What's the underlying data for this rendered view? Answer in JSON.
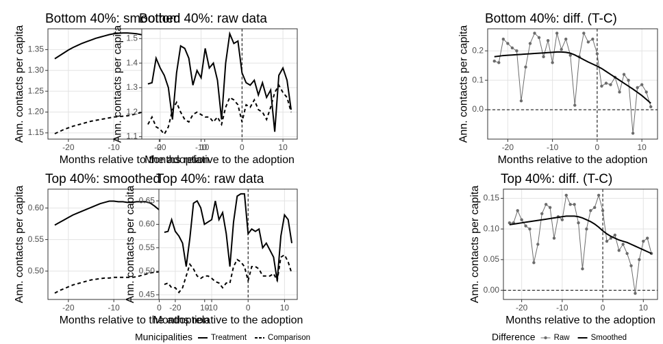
{
  "chart_data": [
    {
      "type": "line",
      "title": "Bottom 40%: smoothed",
      "x_label": "Months relative to the adoption",
      "y_label": "Ann. contacts per capita",
      "x": [
        -23,
        -22,
        -21,
        -20,
        -19,
        -18,
        -17,
        -16,
        -15,
        -14,
        -13,
        -12,
        -11,
        -10,
        -9,
        -8,
        -7,
        -6,
        -5,
        -4,
        -3,
        -2,
        -1,
        0,
        1,
        2,
        3,
        4,
        5,
        6,
        7,
        8,
        9,
        10,
        11,
        12
      ],
      "series": [
        {
          "color": "#000000",
          "dash": "solid",
          "marker": false,
          "values": [
            1.328,
            1.335,
            1.342,
            1.349,
            1.355,
            1.36,
            1.365,
            1.369,
            1.373,
            1.377,
            1.38,
            1.383,
            1.386,
            1.388,
            1.389,
            1.39,
            1.39,
            1.389,
            1.388,
            1.386,
            1.384,
            1.381,
            1.377,
            1.37,
            1.36,
            1.35,
            1.341,
            1.333,
            1.325,
            1.317,
            1.309,
            1.301,
            1.294,
            1.287,
            1.281,
            1.274
          ]
        },
        {
          "color": "#000000",
          "dash": "dashed",
          "marker": false,
          "values": [
            1.148,
            1.153,
            1.158,
            1.162,
            1.166,
            1.169,
            1.172,
            1.175,
            1.178,
            1.18,
            1.182,
            1.184,
            1.186,
            1.188,
            1.189,
            1.19,
            1.191,
            1.193,
            1.196,
            1.199,
            1.203,
            1.207,
            1.211,
            1.215,
            1.219,
            1.222,
            1.225,
            1.228,
            1.231,
            1.234,
            1.237,
            1.24,
            1.243,
            1.245,
            1.248,
            1.25
          ]
        }
      ],
      "xlim": [
        -24.5,
        13.5
      ],
      "xticks": [
        -20,
        -10,
        0,
        10
      ],
      "ylim": [
        1.135,
        1.4
      ],
      "yticks": [
        {
          "value": 1.15,
          "label": "1.15"
        },
        {
          "value": 1.2,
          "label": "1.20"
        },
        {
          "value": 1.25,
          "label": "1.25"
        },
        {
          "value": 1.3,
          "label": "1.30"
        },
        {
          "value": 1.35,
          "label": "1.35"
        }
      ],
      "grid": true,
      "vline": 0
    },
    {
      "type": "line",
      "title": "Bottom 40%: raw data",
      "x_label": "Months relative to the adoption",
      "y_label": "Ann. contacts per capita",
      "x": [
        -23,
        -22,
        -21,
        -20,
        -19,
        -18,
        -17,
        -16,
        -15,
        -14,
        -13,
        -12,
        -11,
        -10,
        -9,
        -8,
        -7,
        -6,
        -5,
        -4,
        -3,
        -2,
        -1,
        0,
        1,
        2,
        3,
        4,
        5,
        6,
        7,
        8,
        9,
        10,
        11,
        12
      ],
      "series": [
        {
          "color": "#000000",
          "dash": "solid",
          "marker": false,
          "values": [
            1.315,
            1.32,
            1.42,
            1.38,
            1.35,
            1.3,
            1.17,
            1.36,
            1.47,
            1.46,
            1.42,
            1.31,
            1.37,
            1.34,
            1.46,
            1.38,
            1.4,
            1.33,
            1.17,
            1.4,
            1.52,
            1.48,
            1.49,
            1.36,
            1.32,
            1.31,
            1.33,
            1.27,
            1.32,
            1.26,
            1.29,
            1.12,
            1.35,
            1.38,
            1.33,
            1.21
          ]
        },
        {
          "color": "#000000",
          "dash": "dashed",
          "marker": false,
          "values": [
            1.15,
            1.18,
            1.14,
            1.13,
            1.11,
            1.14,
            1.21,
            1.24,
            1.2,
            1.17,
            1.16,
            1.19,
            1.2,
            1.19,
            1.18,
            1.18,
            1.16,
            1.18,
            1.15,
            1.22,
            1.26,
            1.25,
            1.23,
            1.16,
            1.23,
            1.22,
            1.25,
            1.21,
            1.2,
            1.17,
            1.22,
            1.28,
            1.31,
            1.28,
            1.26,
            1.2
          ]
        }
      ],
      "xlim": [
        -24.5,
        13.5
      ],
      "xticks": [
        -20,
        -10,
        0,
        10
      ],
      "ylim": [
        1.09,
        1.54
      ],
      "yticks": [
        1.1,
        1.2,
        1.3,
        1.4,
        1.5
      ],
      "grid": true,
      "vline": 0
    },
    {
      "type": "line",
      "title": "Bottom 40%: diff. (T-C)",
      "x_label": "Months relative to the adoption",
      "y_label": "Ann. contacts per capita",
      "x": [
        -23,
        -22,
        -21,
        -20,
        -19,
        -18,
        -17,
        -16,
        -15,
        -14,
        -13,
        -12,
        -11,
        -10,
        -9,
        -8,
        -7,
        -6,
        -5,
        -4,
        -3,
        -2,
        -1,
        0,
        1,
        2,
        3,
        4,
        5,
        6,
        7,
        8,
        9,
        10,
        11,
        12
      ],
      "series": [
        {
          "color": "#6b6b6b",
          "dash": "solid",
          "marker": true,
          "values": [
            0.165,
            0.16,
            0.24,
            0.225,
            0.21,
            0.2,
            0.03,
            0.145,
            0.225,
            0.26,
            0.245,
            0.18,
            0.235,
            0.16,
            0.26,
            0.205,
            0.24,
            0.185,
            0.015,
            0.18,
            0.26,
            0.23,
            0.24,
            0.19,
            0.08,
            0.09,
            0.085,
            0.11,
            0.06,
            0.12,
            0.1,
            -0.08,
            0.075,
            0.085,
            0.06,
            0.01
          ]
        },
        {
          "color": "#000000",
          "dash": "solid",
          "marker": false,
          "values": [
            0.18,
            0.182,
            0.184,
            0.185,
            0.186,
            0.187,
            0.188,
            0.189,
            0.19,
            0.191,
            0.192,
            0.193,
            0.194,
            0.195,
            0.196,
            0.196,
            0.195,
            0.192,
            0.186,
            0.178,
            0.17,
            0.162,
            0.155,
            0.148,
            0.14,
            0.13,
            0.12,
            0.11,
            0.1,
            0.09,
            0.08,
            0.07,
            0.059,
            0.048,
            0.035,
            0.022
          ]
        }
      ],
      "xlim": [
        -24.5,
        13.5
      ],
      "xticks": [
        -20,
        -10,
        0,
        10
      ],
      "ylim": [
        -0.1,
        0.275
      ],
      "yticks": [
        {
          "value": 0,
          "label": "0.0"
        },
        0.1,
        0.2
      ],
      "grid": true,
      "vline": 0,
      "hline": 0
    },
    {
      "type": "line",
      "title": "Top 40%: smoothed",
      "x_label": "Months relative to the adoption",
      "y_label": "Ann. contacts per capita",
      "x": [
        -23,
        -22,
        -21,
        -20,
        -19,
        -18,
        -17,
        -16,
        -15,
        -14,
        -13,
        -12,
        -11,
        -10,
        -9,
        -8,
        -7,
        -6,
        -5,
        -4,
        -3,
        -2,
        -1,
        0,
        1,
        2,
        3,
        4,
        5,
        6,
        7,
        8,
        9,
        10,
        11,
        12
      ],
      "series": [
        {
          "color": "#000000",
          "dash": "solid",
          "marker": false,
          "values": [
            0.573,
            0.577,
            0.581,
            0.585,
            0.589,
            0.592,
            0.595,
            0.598,
            0.601,
            0.604,
            0.607,
            0.609,
            0.611,
            0.611,
            0.61,
            0.61,
            0.609,
            0.609,
            0.61,
            0.61,
            0.61,
            0.608,
            0.603,
            0.597,
            0.59,
            0.585,
            0.583,
            0.581,
            0.579,
            0.578,
            0.577,
            0.577,
            0.577,
            0.577,
            0.578,
            0.578
          ]
        },
        {
          "color": "#000000",
          "dash": "dashed",
          "marker": false,
          "values": [
            0.465,
            0.469,
            0.472,
            0.475,
            0.478,
            0.48,
            0.482,
            0.484,
            0.486,
            0.487,
            0.488,
            0.489,
            0.489,
            0.49,
            0.49,
            0.49,
            0.49,
            0.49,
            0.491,
            0.493,
            0.495,
            0.497,
            0.498,
            0.499,
            0.5,
            0.5,
            0.501,
            0.502,
            0.503,
            0.505,
            0.506,
            0.508,
            0.51,
            0.512,
            0.515,
            0.518
          ]
        }
      ],
      "xlim": [
        -24.5,
        13.5
      ],
      "xticks": [
        -20,
        -10,
        0,
        10
      ],
      "ylim": [
        0.455,
        0.63
      ],
      "yticks": [
        {
          "value": 0.5,
          "label": "0.50"
        },
        0.55,
        {
          "value": 0.6,
          "label": "0.60"
        }
      ],
      "grid": true,
      "vline": 0
    },
    {
      "type": "line",
      "title": "Top 40%: raw data",
      "x_label": "Months relative to the adoption",
      "y_label": "Ann. contacts per capita",
      "x": [
        -23,
        -22,
        -21,
        -20,
        -19,
        -18,
        -17,
        -16,
        -15,
        -14,
        -13,
        -12,
        -11,
        -10,
        -9,
        -8,
        -7,
        -6,
        -5,
        -4,
        -3,
        -2,
        -1,
        0,
        1,
        2,
        3,
        4,
        5,
        6,
        7,
        8,
        9,
        10,
        11,
        12
      ],
      "series": [
        {
          "color": "#000000",
          "dash": "solid",
          "marker": false,
          "values": [
            0.583,
            0.585,
            0.61,
            0.585,
            0.575,
            0.56,
            0.51,
            0.57,
            0.645,
            0.65,
            0.635,
            0.6,
            0.605,
            0.61,
            0.65,
            0.61,
            0.625,
            0.58,
            0.51,
            0.605,
            0.66,
            0.665,
            0.665,
            0.58,
            0.59,
            0.585,
            0.59,
            0.55,
            0.56,
            0.545,
            0.53,
            0.48,
            0.575,
            0.62,
            0.61,
            0.56
          ]
        },
        {
          "color": "#000000",
          "dash": "dashed",
          "marker": false,
          "values": [
            0.472,
            0.475,
            0.465,
            0.465,
            0.455,
            0.465,
            0.49,
            0.515,
            0.505,
            0.49,
            0.485,
            0.49,
            0.49,
            0.485,
            0.478,
            0.475,
            0.465,
            0.475,
            0.475,
            0.51,
            0.525,
            0.52,
            0.51,
            0.48,
            0.51,
            0.51,
            0.505,
            0.49,
            0.49,
            0.49,
            0.495,
            0.48,
            0.53,
            0.535,
            0.52,
            0.495
          ]
        }
      ],
      "xlim": [
        -24.5,
        13.5
      ],
      "xticks": [
        -20,
        -10,
        0,
        10
      ],
      "ylim": [
        0.44,
        0.675
      ],
      "yticks": [
        0.45,
        {
          "value": 0.5,
          "label": "0.50"
        },
        0.55,
        {
          "value": 0.6,
          "label": "0.60"
        },
        0.65
      ],
      "grid": true,
      "vline": 0
    },
    {
      "type": "line",
      "title": "Top 40%: diff. (T-C)",
      "x_label": "Months relative to the adoption",
      "y_label": "Ann. contacts per capita",
      "x": [
        -23,
        -22,
        -21,
        -20,
        -19,
        -18,
        -17,
        -16,
        -15,
        -14,
        -13,
        -12,
        -11,
        -10,
        -9,
        -8,
        -7,
        -6,
        -5,
        -4,
        -3,
        -2,
        -1,
        0,
        1,
        2,
        3,
        4,
        5,
        6,
        7,
        8,
        9,
        10,
        11,
        12
      ],
      "series": [
        {
          "color": "#6b6b6b",
          "dash": "solid",
          "marker": true,
          "values": [
            0.11,
            0.11,
            0.13,
            0.115,
            0.105,
            0.1,
            0.045,
            0.075,
            0.125,
            0.14,
            0.135,
            0.085,
            0.12,
            0.115,
            0.155,
            0.14,
            0.14,
            0.11,
            0.035,
            0.1,
            0.13,
            0.135,
            0.155,
            0.13,
            0.08,
            0.085,
            0.09,
            0.065,
            0.075,
            0.06,
            0.04,
            -0.005,
            0.05,
            0.08,
            0.085,
            0.06
          ]
        },
        {
          "color": "#000000",
          "dash": "solid",
          "marker": false,
          "values": [
            0.107,
            0.108,
            0.109,
            0.11,
            0.111,
            0.112,
            0.113,
            0.114,
            0.115,
            0.116,
            0.117,
            0.118,
            0.119,
            0.12,
            0.121,
            0.121,
            0.121,
            0.12,
            0.118,
            0.115,
            0.112,
            0.108,
            0.103,
            0.097,
            0.092,
            0.088,
            0.085,
            0.082,
            0.08,
            0.078,
            0.075,
            0.072,
            0.069,
            0.066,
            0.063,
            0.06
          ]
        }
      ],
      "xlim": [
        -24.5,
        13.5
      ],
      "xticks": [
        -20,
        -10,
        0,
        10
      ],
      "ylim": [
        -0.015,
        0.165
      ],
      "yticks": [
        {
          "value": 0,
          "label": "0.00"
        },
        0.05,
        {
          "value": 0.1,
          "label": "0.10"
        },
        0.15
      ],
      "grid": true,
      "vline": 0,
      "hline": 0
    }
  ],
  "legends": [
    {
      "title": "Municipalities",
      "entries": [
        {
          "name": "Treatment",
          "color": "#000000",
          "dash": "solid",
          "marker": false
        },
        {
          "name": "Comparison",
          "color": "#000000",
          "dash": "dashed",
          "marker": false
        }
      ]
    },
    {
      "title": "Difference",
      "entries": [
        {
          "name": "Raw",
          "color": "#6b6b6b",
          "dash": "solid",
          "marker": true
        },
        {
          "name": "Smoothed",
          "color": "#000000",
          "dash": "solid",
          "marker": false
        }
      ]
    }
  ]
}
